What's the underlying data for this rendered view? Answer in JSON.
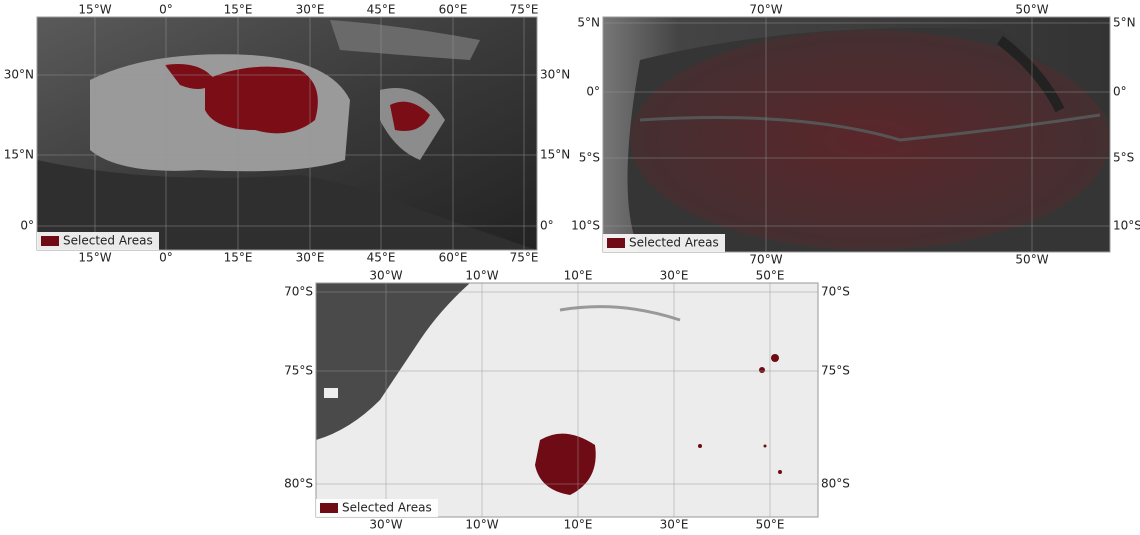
{
  "maps": [
    {
      "legend": "Selected Areas",
      "top": [
        "15°W",
        "0°",
        "15°E",
        "30°E",
        "45°E",
        "60°E",
        "75°E"
      ],
      "bottom": [
        "15°W",
        "0°",
        "15°E",
        "30°E",
        "45°E",
        "60°E",
        "75°E"
      ],
      "left": [
        "30°N",
        "15°N",
        "0°"
      ],
      "right": [
        "30°N",
        "15°N",
        "0°"
      ]
    },
    {
      "legend": "Selected Areas",
      "top": [
        "70°W",
        "50°W"
      ],
      "bottom": [
        "70°W",
        "50°W"
      ],
      "left": [
        "5°N",
        "0°",
        "5°S",
        "10°S"
      ],
      "right": [
        "5°N",
        "0°",
        "5°S",
        "10°S"
      ]
    },
    {
      "legend": "Selected Areas",
      "top": [
        "30°W",
        "10°W",
        "10°E",
        "30°E",
        "50°E"
      ],
      "bottom": [
        "30°W",
        "10°W",
        "10°E",
        "30°E",
        "50°E"
      ],
      "left": [
        "70°S",
        "75°S",
        "80°S"
      ],
      "right": [
        "70°S",
        "75°S",
        "80°S"
      ]
    }
  ]
}
